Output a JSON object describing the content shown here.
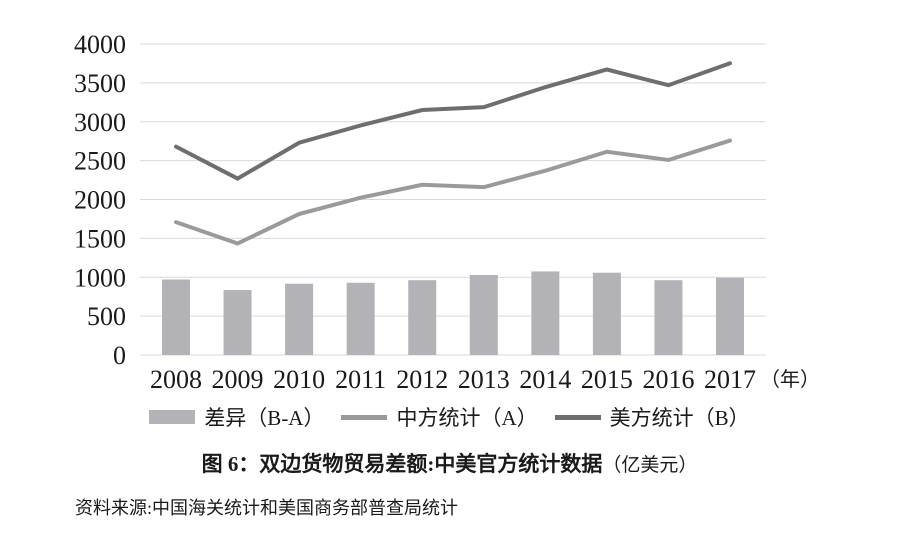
{
  "chart_data": {
    "type": "combo-bar-line",
    "title": "图 6：双边货物贸易差额:中美官方统计数据",
    "title_unit": "（亿美元）",
    "source_note": "资料来源:中国海关统计和美国商务部普查局统计",
    "categories": [
      "2008",
      "2009",
      "2010",
      "2011",
      "2012",
      "2013",
      "2014",
      "2015",
      "2016",
      "2017"
    ],
    "x_unit": "（年）",
    "y_ticks": [
      0,
      500,
      1000,
      1500,
      2000,
      2500,
      3000,
      3500,
      4000
    ],
    "ylim": [
      0,
      4000
    ],
    "grid": true,
    "legend_position": "bottom",
    "grid_color": "#d9d9d9",
    "text_color": "#1a1a1a",
    "series": [
      {
        "name": "差异（B-A）",
        "type": "bar",
        "color": "#b3b3b7",
        "values": [
          971,
          835,
          917,
          929,
          962,
          1029,
          1075,
          1058,
          962,
          994
        ]
      },
      {
        "name": "中方统计（A）",
        "type": "line",
        "color": "#9a9a9a",
        "values": [
          1709,
          1434,
          1813,
          2023,
          2189,
          2159,
          2370,
          2614,
          2508,
          2758
        ]
      },
      {
        "name": "美方统计（B）",
        "type": "line",
        "color": "#6e6e6e",
        "values": [
          2680,
          2269,
          2730,
          2952,
          3151,
          3188,
          3445,
          3672,
          3470,
          3752
        ]
      }
    ]
  },
  "legend": [
    {
      "label": "差异（B-A）",
      "swatch": "bar",
      "color": "#b3b3b7"
    },
    {
      "label": "中方统计（A）",
      "swatch": "line",
      "color": "#9a9a9a"
    },
    {
      "label": "美方统计（B）",
      "swatch": "line",
      "color": "#6e6e6e"
    }
  ],
  "caption": {
    "main": "图 6：双边货物贸易差额:中美官方统计数据",
    "unit": "（亿美元）",
    "source": "资料来源:中国海关统计和美国商务部普查局统计"
  }
}
